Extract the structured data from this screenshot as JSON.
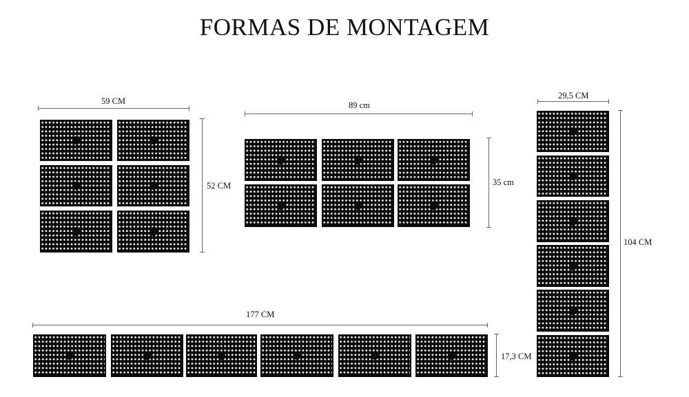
{
  "title": "FORMAS DE MONTAGEM",
  "layouts": [
    {
      "name": "grid-2x3",
      "width_label": "59 CM",
      "height_label": "52 CM",
      "columns": 2,
      "rows": 3
    },
    {
      "name": "grid-3x2",
      "width_label": "89 cm",
      "height_label": "35 cm",
      "columns": 3,
      "rows": 2
    },
    {
      "name": "column-1x6",
      "width_label": "29,5 CM",
      "height_label": "104 CM",
      "columns": 1,
      "rows": 6
    },
    {
      "name": "row-6x1",
      "width_label": "177 CM",
      "height_label": "17,3 CM",
      "columns": 6,
      "rows": 1
    }
  ],
  "colors": {
    "tile": "#0b0b0b",
    "background": "#ffffff",
    "dimension_line": "#666666"
  }
}
